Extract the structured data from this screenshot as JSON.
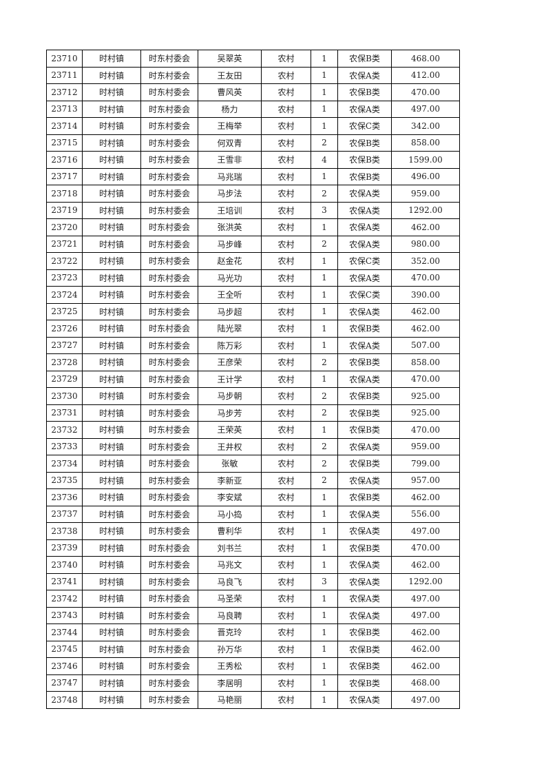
{
  "table": {
    "rows": [
      [
        "23710",
        "时村镇",
        "时东村委会",
        "吴翠英",
        "农村",
        "1",
        "农保B类",
        "468.00"
      ],
      [
        "23711",
        "时村镇",
        "时东村委会",
        "王友田",
        "农村",
        "1",
        "农保A类",
        "412.00"
      ],
      [
        "23712",
        "时村镇",
        "时东村委会",
        "曹风英",
        "农村",
        "1",
        "农保B类",
        "470.00"
      ],
      [
        "23713",
        "时村镇",
        "时东村委会",
        "杨力",
        "农村",
        "1",
        "农保A类",
        "497.00"
      ],
      [
        "23714",
        "时村镇",
        "时东村委会",
        "王梅举",
        "农村",
        "1",
        "农保C类",
        "342.00"
      ],
      [
        "23715",
        "时村镇",
        "时东村委会",
        "何双青",
        "农村",
        "2",
        "农保B类",
        "858.00"
      ],
      [
        "23716",
        "时村镇",
        "时东村委会",
        "王雪非",
        "农村",
        "4",
        "农保B类",
        "1599.00"
      ],
      [
        "23717",
        "时村镇",
        "时东村委会",
        "马兆瑞",
        "农村",
        "1",
        "农保B类",
        "496.00"
      ],
      [
        "23718",
        "时村镇",
        "时东村委会",
        "马步法",
        "农村",
        "2",
        "农保A类",
        "959.00"
      ],
      [
        "23719",
        "时村镇",
        "时东村委会",
        "王培训",
        "农村",
        "3",
        "农保A类",
        "1292.00"
      ],
      [
        "23720",
        "时村镇",
        "时东村委会",
        "张洪英",
        "农村",
        "1",
        "农保A类",
        "462.00"
      ],
      [
        "23721",
        "时村镇",
        "时东村委会",
        "马步峰",
        "农村",
        "2",
        "农保A类",
        "980.00"
      ],
      [
        "23722",
        "时村镇",
        "时东村委会",
        "赵金花",
        "农村",
        "1",
        "农保C类",
        "352.00"
      ],
      [
        "23723",
        "时村镇",
        "时东村委会",
        "马光功",
        "农村",
        "1",
        "农保A类",
        "470.00"
      ],
      [
        "23724",
        "时村镇",
        "时东村委会",
        "王全听",
        "农村",
        "1",
        "农保C类",
        "390.00"
      ],
      [
        "23725",
        "时村镇",
        "时东村委会",
        "马步超",
        "农村",
        "1",
        "农保A类",
        "462.00"
      ],
      [
        "23726",
        "时村镇",
        "时东村委会",
        "陆光翠",
        "农村",
        "1",
        "农保B类",
        "462.00"
      ],
      [
        "23727",
        "时村镇",
        "时东村委会",
        "陈万彩",
        "农村",
        "1",
        "农保A类",
        "507.00"
      ],
      [
        "23728",
        "时村镇",
        "时东村委会",
        "王彦荣",
        "农村",
        "2",
        "农保B类",
        "858.00"
      ],
      [
        "23729",
        "时村镇",
        "时东村委会",
        "王计学",
        "农村",
        "1",
        "农保A类",
        "470.00"
      ],
      [
        "23730",
        "时村镇",
        "时东村委会",
        "马步朝",
        "农村",
        "2",
        "农保B类",
        "925.00"
      ],
      [
        "23731",
        "时村镇",
        "时东村委会",
        "马步芳",
        "农村",
        "2",
        "农保B类",
        "925.00"
      ],
      [
        "23732",
        "时村镇",
        "时东村委会",
        "王荣英",
        "农村",
        "1",
        "农保B类",
        "470.00"
      ],
      [
        "23733",
        "时村镇",
        "时东村委会",
        "王井权",
        "农村",
        "2",
        "农保A类",
        "959.00"
      ],
      [
        "23734",
        "时村镇",
        "时东村委会",
        "张敏",
        "农村",
        "2",
        "农保B类",
        "799.00"
      ],
      [
        "23735",
        "时村镇",
        "时东村委会",
        "李新亚",
        "农村",
        "2",
        "农保A类",
        "957.00"
      ],
      [
        "23736",
        "时村镇",
        "时东村委会",
        "李安斌",
        "农村",
        "1",
        "农保B类",
        "462.00"
      ],
      [
        "23737",
        "时村镇",
        "时东村委会",
        "马小捣",
        "农村",
        "1",
        "农保A类",
        "556.00"
      ],
      [
        "23738",
        "时村镇",
        "时东村委会",
        "曹利华",
        "农村",
        "1",
        "农保A类",
        "497.00"
      ],
      [
        "23739",
        "时村镇",
        "时东村委会",
        "刘书兰",
        "农村",
        "1",
        "农保B类",
        "470.00"
      ],
      [
        "23740",
        "时村镇",
        "时东村委会",
        "马兆文",
        "农村",
        "1",
        "农保A类",
        "462.00"
      ],
      [
        "23741",
        "时村镇",
        "时东村委会",
        "马良飞",
        "农村",
        "3",
        "农保A类",
        "1292.00"
      ],
      [
        "23742",
        "时村镇",
        "时东村委会",
        "马圣荣",
        "农村",
        "1",
        "农保A类",
        "497.00"
      ],
      [
        "23743",
        "时村镇",
        "时东村委会",
        "马良聘",
        "农村",
        "1",
        "农保A类",
        "497.00"
      ],
      [
        "23744",
        "时村镇",
        "时东村委会",
        "晋克玲",
        "农村",
        "1",
        "农保B类",
        "462.00"
      ],
      [
        "23745",
        "时村镇",
        "时东村委会",
        "孙万华",
        "农村",
        "1",
        "农保B类",
        "462.00"
      ],
      [
        "23746",
        "时村镇",
        "时东村委会",
        "王秀松",
        "农村",
        "1",
        "农保B类",
        "462.00"
      ],
      [
        "23747",
        "时村镇",
        "时东村委会",
        "李居明",
        "农村",
        "1",
        "农保B类",
        "468.00"
      ],
      [
        "23748",
        "时村镇",
        "时东村委会",
        "马艳丽",
        "农村",
        "1",
        "农保A类",
        "497.00"
      ]
    ]
  }
}
